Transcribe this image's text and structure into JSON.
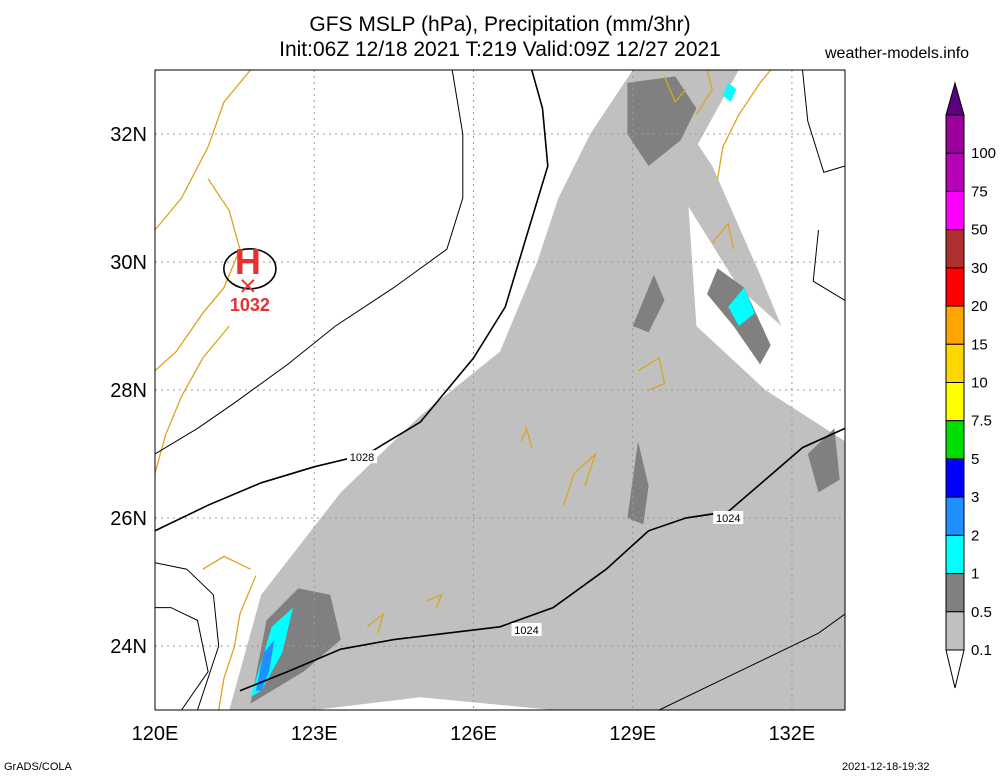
{
  "title": {
    "line1": "GFS MSLP (hPa), Precipitation (mm/3hr)",
    "line2": "Init:06Z 12/18 2021 T:219 Valid:09Z 12/27 2021"
  },
  "site": "weather-models.info",
  "credits": {
    "software": "GrADS/COLA",
    "timestamp": "2021-12-18-19:32"
  },
  "map": {
    "lon_range": [
      120,
      133
    ],
    "lat_range": [
      23,
      33
    ],
    "lon_ticks": [
      {
        "value": 120,
        "label": "120E"
      },
      {
        "value": 123,
        "label": "123E"
      },
      {
        "value": 126,
        "label": "126E"
      },
      {
        "value": 129,
        "label": "129E"
      },
      {
        "value": 132,
        "label": "132E"
      }
    ],
    "lat_ticks": [
      {
        "value": 24,
        "label": "24N"
      },
      {
        "value": 26,
        "label": "26N"
      },
      {
        "value": 28,
        "label": "28N"
      },
      {
        "value": 30,
        "label": "30N"
      },
      {
        "value": 32,
        "label": "32N"
      }
    ],
    "grid": true,
    "coast_color": "#daa520",
    "high_center": {
      "letter": "H",
      "pressure": "1032",
      "lon": 121.75,
      "lat": 29.8,
      "color": "#e83030"
    },
    "isobars": [
      {
        "label": "1028",
        "label_lon": 123.9,
        "label_lat": 26.95,
        "points": [
          [
            120,
            25.8
          ],
          [
            121,
            26.2
          ],
          [
            122,
            26.55
          ],
          [
            123,
            26.8
          ],
          [
            124,
            27.0
          ],
          [
            125,
            27.5
          ],
          [
            126,
            28.5
          ],
          [
            126.6,
            29.3
          ],
          [
            127,
            30.4
          ],
          [
            127.4,
            31.5
          ],
          [
            127.3,
            32.4
          ],
          [
            127.1,
            33
          ]
        ]
      },
      {
        "label": "1024",
        "label_lon": 127.0,
        "label_lat": 24.25,
        "points": [
          [
            121.6,
            23.3
          ],
          [
            122.5,
            23.6
          ],
          [
            123.5,
            23.95
          ],
          [
            124.5,
            24.1
          ],
          [
            125.5,
            24.2
          ],
          [
            126.5,
            24.3
          ],
          [
            127.5,
            24.6
          ],
          [
            128.5,
            25.2
          ],
          [
            129.3,
            25.8
          ],
          [
            130,
            26.0
          ],
          [
            130.8,
            26.1
          ],
          [
            131.5,
            26.6
          ],
          [
            132.2,
            27.1
          ],
          [
            133,
            27.4
          ]
        ]
      },
      {
        "label": "1024",
        "label_lon": 130.8,
        "label_lat": 26.0,
        "points": [
          [
            130,
            26.0
          ],
          [
            130.8,
            26.1
          ]
        ]
      }
    ],
    "precip_patches": [
      {
        "level": "0.1",
        "poly": [
          [
            121.4,
            23
          ],
          [
            122,
            24.8
          ],
          [
            123.5,
            26.4
          ],
          [
            125,
            27.6
          ],
          [
            126.5,
            28.6
          ],
          [
            127.2,
            30
          ],
          [
            127.6,
            31
          ],
          [
            128.2,
            32
          ],
          [
            129,
            33
          ],
          [
            131,
            33
          ],
          [
            130,
            31.5
          ],
          [
            130.2,
            29
          ],
          [
            131.5,
            28
          ],
          [
            133,
            27.2
          ],
          [
            133,
            23
          ],
          [
            127.5,
            23
          ],
          [
            125,
            23.2
          ],
          [
            123,
            23
          ]
        ]
      },
      {
        "level": "0.1",
        "poly": [
          [
            129.3,
            33
          ],
          [
            130.5,
            31.5
          ],
          [
            131.4,
            29.8
          ],
          [
            131.8,
            29
          ],
          [
            131.0,
            29.6
          ],
          [
            129.8,
            31.2
          ],
          [
            128.8,
            32.6
          ]
        ]
      },
      {
        "level": "0.5",
        "poly": [
          [
            121.8,
            23.1
          ],
          [
            122.1,
            24.4
          ],
          [
            122.7,
            24.9
          ],
          [
            123.3,
            24.8
          ],
          [
            123.5,
            24.1
          ],
          [
            122.8,
            23.6
          ]
        ]
      },
      {
        "level": "0.5",
        "poly": [
          [
            128.9,
            32.8
          ],
          [
            129.8,
            32.9
          ],
          [
            130.2,
            32.4
          ],
          [
            129.9,
            31.9
          ],
          [
            129.3,
            31.5
          ],
          [
            128.9,
            32.0
          ]
        ]
      },
      {
        "level": "0.5",
        "poly": [
          [
            130.6,
            29.9
          ],
          [
            131.1,
            29.6
          ],
          [
            131.6,
            28.7
          ],
          [
            131.4,
            28.4
          ],
          [
            130.9,
            29.0
          ],
          [
            130.4,
            29.5
          ]
        ]
      },
      {
        "level": "0.5",
        "poly": [
          [
            128.9,
            26.0
          ],
          [
            129.1,
            27.2
          ],
          [
            129.3,
            26.5
          ],
          [
            129.2,
            25.9
          ]
        ]
      },
      {
        "level": "0.5",
        "poly": [
          [
            132.3,
            27.0
          ],
          [
            132.8,
            27.4
          ],
          [
            132.9,
            26.6
          ],
          [
            132.5,
            26.4
          ]
        ]
      },
      {
        "level": "0.5",
        "poly": [
          [
            129.0,
            29.0
          ],
          [
            129.4,
            29.8
          ],
          [
            129.6,
            29.4
          ],
          [
            129.3,
            28.9
          ]
        ]
      },
      {
        "level": "1",
        "poly": [
          [
            121.8,
            23.2
          ],
          [
            122.2,
            24.3
          ],
          [
            122.6,
            24.6
          ],
          [
            122.4,
            23.9
          ],
          [
            122.0,
            23.3
          ]
        ]
      },
      {
        "level": "1",
        "poly": [
          [
            130.8,
            29.3
          ],
          [
            131.1,
            29.6
          ],
          [
            131.3,
            29.2
          ],
          [
            131.0,
            29.0
          ]
        ]
      },
      {
        "level": "1",
        "poly": [
          [
            130.7,
            32.6
          ],
          [
            130.8,
            32.8
          ],
          [
            130.95,
            32.7
          ],
          [
            130.85,
            32.5
          ]
        ]
      },
      {
        "level": "2",
        "poly": [
          [
            121.9,
            23.3
          ],
          [
            122.05,
            23.9
          ],
          [
            122.25,
            24.1
          ],
          [
            122.15,
            23.6
          ],
          [
            122.0,
            23.3
          ]
        ]
      }
    ]
  },
  "colorbar": {
    "levels": [
      {
        "label": "100",
        "color": "#9b009b"
      },
      {
        "label": "75",
        "color": "#b800b8"
      },
      {
        "label": "50",
        "color": "#ff00ff"
      },
      {
        "label": "30",
        "color": "#b03030"
      },
      {
        "label": "20",
        "color": "#ff0000"
      },
      {
        "label": "15",
        "color": "#ffa500"
      },
      {
        "label": "10",
        "color": "#ffd700"
      },
      {
        "label": "7.5",
        "color": "#ffff00"
      },
      {
        "label": "5",
        "color": "#00dd00"
      },
      {
        "label": "3",
        "color": "#0000ff"
      },
      {
        "label": "2",
        "color": "#1e90ff"
      },
      {
        "label": "1",
        "color": "#00ffff"
      },
      {
        "label": "0.5",
        "color": "#808080"
      },
      {
        "label": "0.1",
        "color": "#c0c0c0"
      }
    ],
    "top_color": "#5a0080",
    "bottom_color": "#ffffff"
  }
}
